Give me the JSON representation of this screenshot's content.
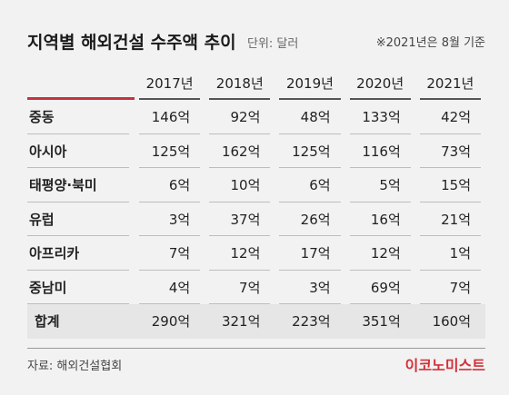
{
  "header": {
    "title": "지역별 해외건설 수주액 추이",
    "unit": "단위: 달러",
    "note": "※2021년은 8월 기준"
  },
  "chart_data": {
    "type": "table",
    "title": "지역별 해외건설 수주액 추이",
    "unit": "단위: 달러",
    "columns": [
      "2017년",
      "2018년",
      "2019년",
      "2020년",
      "2021년"
    ],
    "rows": [
      {
        "label": "중동",
        "values": [
          "146억",
          "92억",
          "48억",
          "133억",
          "42억"
        ]
      },
      {
        "label": "아시아",
        "values": [
          "125억",
          "162억",
          "125억",
          "116억",
          "73억"
        ]
      },
      {
        "label": "태평양·북미",
        "values": [
          "6억",
          "10억",
          "6억",
          "5억",
          "15억"
        ]
      },
      {
        "label": "유럽",
        "values": [
          "3억",
          "37억",
          "26억",
          "16억",
          "21억"
        ]
      },
      {
        "label": "아프리카",
        "values": [
          "7억",
          "12억",
          "17억",
          "12억",
          "1억"
        ]
      },
      {
        "label": "중남미",
        "values": [
          "4억",
          "7억",
          "3억",
          "69억",
          "7억"
        ]
      }
    ],
    "total": {
      "label": "합계",
      "values": [
        "290억",
        "321억",
        "223억",
        "351억",
        "160억"
      ]
    }
  },
  "footer": {
    "source": "자료: 해외건설협회",
    "brand": "이코노미스트"
  },
  "colors": {
    "accent": "#c8323c",
    "brand": "#d4303a",
    "background": "#f2f2f2",
    "total_row": "#e6e6e6"
  }
}
